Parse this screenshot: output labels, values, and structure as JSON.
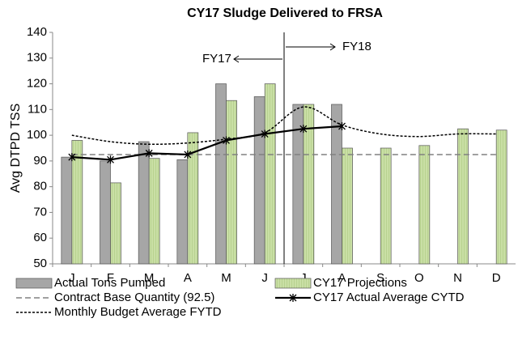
{
  "chart_data": {
    "type": "bar",
    "title": "CY17 Sludge Delivered to FRSA",
    "y_label": "Avg  DTPD TSS",
    "categories": [
      "J",
      "F",
      "M",
      "A",
      "M",
      "J",
      "J",
      "A",
      "S",
      "O",
      "N",
      "D"
    ],
    "series": [
      {
        "name": "Actual Tons Pumped",
        "type": "bar",
        "color": "#a6a6a6",
        "values": [
          91.5,
          90,
          97.5,
          90.5,
          120,
          115,
          112,
          112,
          null,
          null,
          null,
          null
        ]
      },
      {
        "name": "CY17 Projections",
        "type": "bar",
        "color": "#c9dfa5",
        "values": [
          98,
          81.5,
          91,
          101,
          113.5,
          120,
          112,
          95,
          95,
          96,
          102.5,
          102
        ]
      },
      {
        "name": "Contract Base Quantity (92.5)",
        "type": "line",
        "color": "#808080",
        "line_style": "dashed",
        "values": [
          92.5,
          92.5,
          92.5,
          92.5,
          92.5,
          92.5,
          92.5,
          92.5,
          92.5,
          92.5,
          92.5,
          92.5
        ]
      },
      {
        "name": "CY17 Actual Average CYTD",
        "type": "line",
        "color": "#000000",
        "line_style": "solid",
        "marker": "asterisk",
        "values": [
          91.5,
          90.5,
          93,
          92.5,
          98,
          100.5,
          102.5,
          103.5,
          null,
          null,
          null,
          null
        ]
      },
      {
        "name": "Monthly Budget Average FYTD",
        "type": "line",
        "color": "#000000",
        "line_style": "dotted",
        "smooth": true,
        "values": [
          100,
          97.5,
          96.5,
          97,
          98.5,
          101,
          111,
          104,
          100.5,
          99.5,
          100.5,
          100.5
        ]
      }
    ],
    "annotations": [
      "FY17",
      "FY18"
    ],
    "ylim": [
      50,
      140
    ],
    "yticks": [
      50,
      60,
      70,
      80,
      90,
      100,
      110,
      120,
      130,
      140
    ],
    "grid": false
  }
}
